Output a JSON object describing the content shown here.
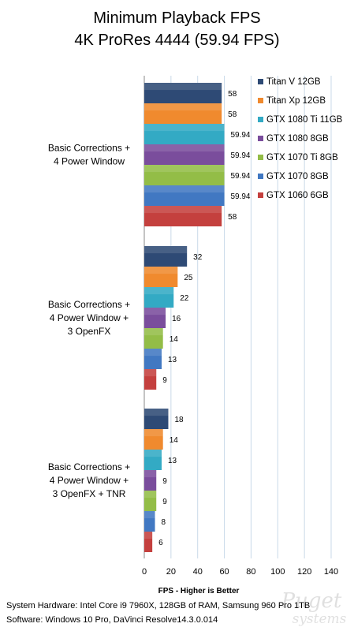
{
  "chart_data": {
    "type": "bar",
    "orientation": "horizontal",
    "title": "Minimum Playback FPS",
    "subtitle": "4K ProRes 4444 (59.94 FPS)",
    "xlabel": "FPS - Higher is Better",
    "xlim": [
      0,
      140
    ],
    "xticks": [
      "0",
      "20",
      "40",
      "60",
      "80",
      "100",
      "120",
      "140"
    ],
    "grid": "vertical",
    "legend_position": "right",
    "categories": [
      [
        "Basic Corrections +",
        "4 Power Window"
      ],
      [
        "Basic Corrections +",
        "4 Power Window +",
        "3 OpenFX"
      ],
      [
        "Basic Corrections +",
        "4 Power Window +",
        "3 OpenFX + TNR"
      ]
    ],
    "series": [
      {
        "name": "Titan V 12GB",
        "color": "#2e4a75",
        "values": [
          58,
          32,
          18
        ],
        "labels": [
          "58",
          "32",
          "18"
        ]
      },
      {
        "name": "Titan Xp 12GB",
        "color": "#f08a2e",
        "values": [
          58,
          25,
          14
        ],
        "labels": [
          "58",
          "25",
          "14"
        ]
      },
      {
        "name": "GTX 1080 Ti 11GB",
        "color": "#33aac4",
        "values": [
          59.94,
          22,
          13
        ],
        "labels": [
          "59.94",
          "22",
          "13"
        ]
      },
      {
        "name": "GTX 1080 8GB",
        "color": "#7a4d9c",
        "values": [
          59.94,
          16,
          9
        ],
        "labels": [
          "59.94",
          "16",
          "9"
        ]
      },
      {
        "name": "GTX 1070 Ti 8GB",
        "color": "#93bd47",
        "values": [
          59.94,
          14,
          9
        ],
        "labels": [
          "59.94",
          "14",
          "9"
        ]
      },
      {
        "name": "GTX 1070 8GB",
        "color": "#4178c2",
        "values": [
          59.94,
          13,
          8
        ],
        "labels": [
          "59.94",
          "13",
          "8"
        ]
      },
      {
        "name": "GTX 1060 6GB",
        "color": "#c4403e",
        "values": [
          58,
          9,
          6
        ],
        "labels": [
          "58",
          "9",
          "6"
        ]
      }
    ]
  },
  "footer": {
    "hardware": "System Hardware: Intel Core i9 7960X,  128GB of RAM, Samsung 960 Pro 1TB",
    "software": "Software: Windows 10 Pro, DaVinci Resolve14.3.0.014"
  },
  "watermark": {
    "line1": "Puget",
    "line2": "systems"
  }
}
